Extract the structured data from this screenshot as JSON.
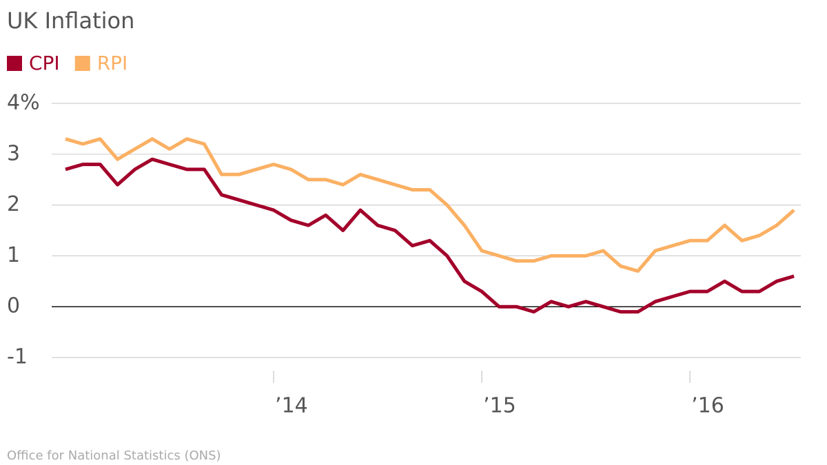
{
  "chart_data": {
    "type": "line",
    "title": "UK Inflation",
    "source": "Office for National Statistics (ONS)",
    "categories": [
      null,
      null,
      null,
      null,
      null,
      null,
      null,
      null,
      null,
      null,
      null,
      null,
      "’14",
      null,
      null,
      null,
      null,
      null,
      null,
      null,
      null,
      null,
      null,
      null,
      "’15",
      null,
      null,
      null,
      null,
      null,
      null,
      null,
      null,
      null,
      null,
      null,
      "’16",
      null,
      null,
      null,
      null,
      null,
      null
    ],
    "series": [
      {
        "name": "CPI",
        "color": "#a3002a",
        "values": [
          2.7,
          2.8,
          2.8,
          2.4,
          2.7,
          2.9,
          2.8,
          2.7,
          2.7,
          2.2,
          2.1,
          2.0,
          1.9,
          1.7,
          1.6,
          1.8,
          1.5,
          1.9,
          1.6,
          1.5,
          1.2,
          1.3,
          1.0,
          0.5,
          0.3,
          0.0,
          0.0,
          -0.1,
          0.1,
          0.0,
          0.1,
          0.0,
          -0.1,
          -0.1,
          0.1,
          0.2,
          0.3,
          0.3,
          0.5,
          0.3,
          0.3,
          0.5,
          0.6
        ]
      },
      {
        "name": "RPI",
        "color": "#fbb063",
        "values": [
          3.3,
          3.2,
          3.3,
          2.9,
          3.1,
          3.3,
          3.1,
          3.3,
          3.2,
          2.6,
          2.6,
          2.7,
          2.8,
          2.7,
          2.5,
          2.5,
          2.4,
          2.6,
          2.5,
          2.4,
          2.3,
          2.3,
          2.0,
          1.6,
          1.1,
          1.0,
          0.9,
          0.9,
          1.0,
          1.0,
          1.0,
          1.1,
          0.8,
          0.7,
          1.1,
          1.2,
          1.3,
          1.3,
          1.6,
          1.3,
          1.4,
          1.6,
          1.9
        ]
      }
    ],
    "ylim": [
      -1,
      4
    ],
    "yticks": [
      -1,
      0,
      1,
      2,
      3,
      {
        "value": 4,
        "label": "4%"
      }
    ],
    "grid": true,
    "legend": "top-left"
  }
}
